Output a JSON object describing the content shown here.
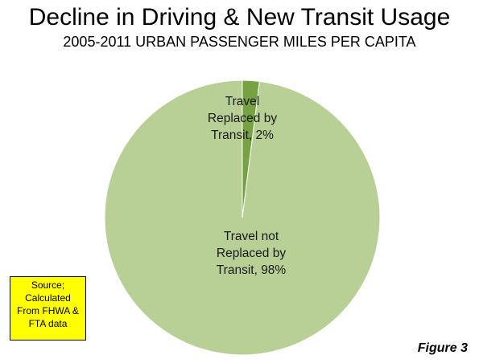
{
  "header": {
    "title": "Decline in Driving & New Transit Usage",
    "subtitle": "2005-2011 URBAN PASSENGER MILES PER CAPITA"
  },
  "chart_data": {
    "type": "pie",
    "title": "Decline in Driving & New Transit Usage",
    "subtitle": "2005-2011 URBAN PASSENGER MILES PER CAPITA",
    "slices": [
      {
        "label": "Travel\nReplaced by\nTransit, 2%",
        "value": 2,
        "color": "#76a241"
      },
      {
        "label": "Travel not\nReplaced by\nTransit, 98%",
        "value": 98,
        "color": "#b8cf96"
      }
    ]
  },
  "source_note": "Source;\nCalculated\nFrom FHWA &\nFTA data",
  "figure_label": "Figure 3",
  "colors": {
    "source_box": "#ffff00",
    "slice_border": "#ffffff"
  }
}
